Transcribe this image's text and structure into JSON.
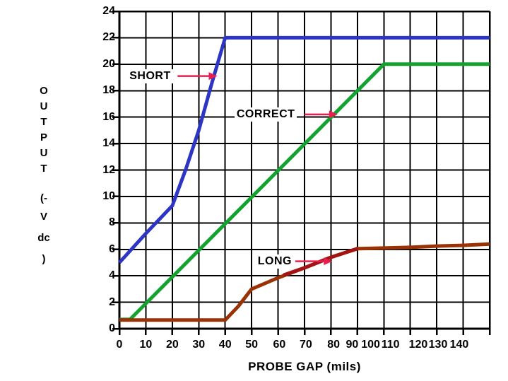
{
  "chart_data": {
    "type": "line",
    "title": "",
    "xlabel": "PROBE GAP (mils)",
    "ylabel": "OUTPUT (-V dc)",
    "ylabel_lines": [
      "O",
      "U",
      "T",
      "P",
      "U",
      "T",
      "(-",
      "V",
      "dc",
      ")"
    ],
    "xlim": [
      0,
      140
    ],
    "ylim": [
      0,
      24
    ],
    "grid": true,
    "axis_color": "#000000",
    "arrow_color": "#ea1e4e",
    "y_ticks": [
      0,
      2,
      4,
      6,
      8,
      10,
      12,
      14,
      16,
      18,
      20,
      22,
      24
    ],
    "x_gridlines": [
      0,
      10,
      20,
      30,
      40,
      50,
      60,
      70,
      80,
      90,
      100,
      110,
      120,
      130,
      140
    ],
    "x_tick_labels": [
      {
        "label": "0",
        "x": 0
      },
      {
        "label": "10",
        "x": 10
      },
      {
        "label": "20",
        "x": 20
      },
      {
        "label": "30",
        "x": 30
      },
      {
        "label": "40",
        "x": 40
      },
      {
        "label": "50",
        "x": 50
      },
      {
        "label": "60",
        "x": 60.5
      },
      {
        "label": "70",
        "x": 70.5
      },
      {
        "label": "80",
        "x": 81
      },
      {
        "label": "90",
        "x": 88
      },
      {
        "label": "100",
        "x": 95
      },
      {
        "label": "110",
        "x": 102.5
      },
      {
        "label": "120",
        "x": 113
      },
      {
        "label": "130",
        "x": 120.5
      },
      {
        "label": "140",
        "x": 128.5
      }
    ],
    "series": [
      {
        "name": "SHORT",
        "color": "#2d35c4",
        "width": 5,
        "points": [
          [
            0,
            5
          ],
          [
            10,
            7.2
          ],
          [
            20,
            9.3
          ],
          [
            25,
            12
          ],
          [
            30,
            15
          ],
          [
            35,
            18.6
          ],
          [
            40,
            22
          ],
          [
            140,
            22
          ]
        ]
      },
      {
        "name": "CORRECT",
        "color": "#12a32e",
        "width": 5,
        "points": [
          [
            0,
            0.7
          ],
          [
            4,
            0.7
          ],
          [
            100,
            20
          ],
          [
            140,
            20
          ]
        ]
      },
      {
        "name": "LONG",
        "color": "#993305",
        "width": 5,
        "points": [
          [
            0,
            0.65
          ],
          [
            40,
            0.65
          ],
          [
            45,
            1.7
          ],
          [
            50,
            3
          ],
          [
            60,
            3.85
          ],
          [
            70,
            4.6
          ],
          [
            80,
            5.4
          ],
          [
            90,
            6.05
          ],
          [
            100,
            6.1
          ],
          [
            110,
            6.15
          ],
          [
            120,
            6.25
          ],
          [
            130,
            6.3
          ],
          [
            140,
            6.4
          ]
        ],
        "overlay": {
          "color": "#a31313",
          "points": [
            [
              62,
              4.05
            ],
            [
              70,
              4.6
            ],
            [
              80,
              5.4
            ],
            [
              90,
              6.05
            ]
          ]
        }
      }
    ],
    "annotations": [
      {
        "label": "SHORT",
        "text_x": 3,
        "text_y": 19.1,
        "arrow_x1": 22,
        "arrow_x2": 37,
        "arrow_y": 19.1
      },
      {
        "label": "CORRECT",
        "text_x": 43.5,
        "text_y": 16.2,
        "arrow_x1": 70,
        "arrow_x2": 82.5,
        "arrow_y": 16.2
      },
      {
        "label": "LONG",
        "text_x": 51.5,
        "text_y": 5.1,
        "arrow_x1": 66.5,
        "arrow_x2": 80.5,
        "arrow_y": 5.1
      }
    ]
  }
}
